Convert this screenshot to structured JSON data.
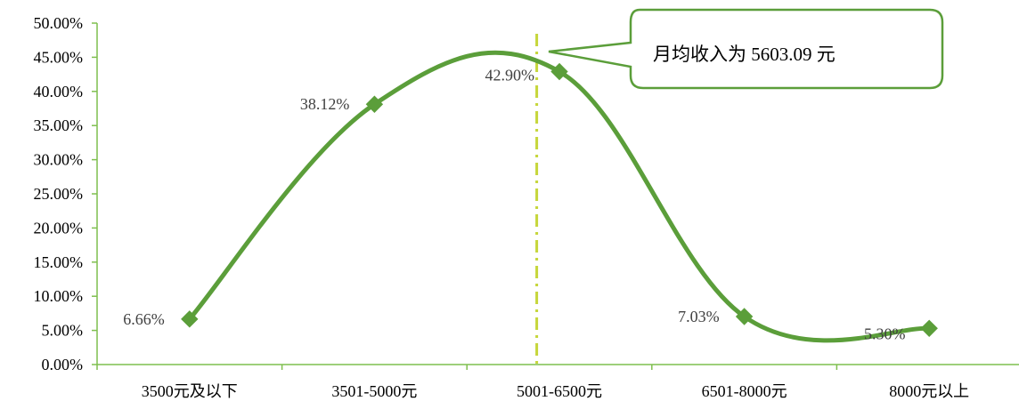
{
  "chart_data": {
    "type": "line",
    "categories": [
      "3500元及以下",
      "3501-5000元",
      "5001-6500元",
      "6501-8000元",
      "8000元以上"
    ],
    "series": [
      {
        "values": [
          6.66,
          38.12,
          42.9,
          7.03,
          5.3
        ]
      }
    ],
    "data_labels": [
      "6.66%",
      "38.12%",
      "42.90%",
      "7.03%",
      "5.30%"
    ],
    "y_ticks": [
      "0.00%",
      "5.00%",
      "10.00%",
      "15.00%",
      "20.00%",
      "25.00%",
      "30.00%",
      "35.00%",
      "40.00%",
      "45.00%",
      "50.00%"
    ],
    "ylim": [
      0,
      50
    ],
    "smooth": true,
    "marker": "diamond",
    "grid": false,
    "legend": "none",
    "title": "",
    "xlabel": "",
    "ylabel": "",
    "reference_line": {
      "x": 5603.09,
      "style": "dash-dot"
    },
    "annotation": "月均收入为 5603.09 元",
    "colors": {
      "line": "#5b9e3a",
      "marker": "#5b9e3a",
      "axis": "#7fbf4f",
      "reference_line": "#c6d63a",
      "callout_border": "#5b9e3a"
    }
  }
}
